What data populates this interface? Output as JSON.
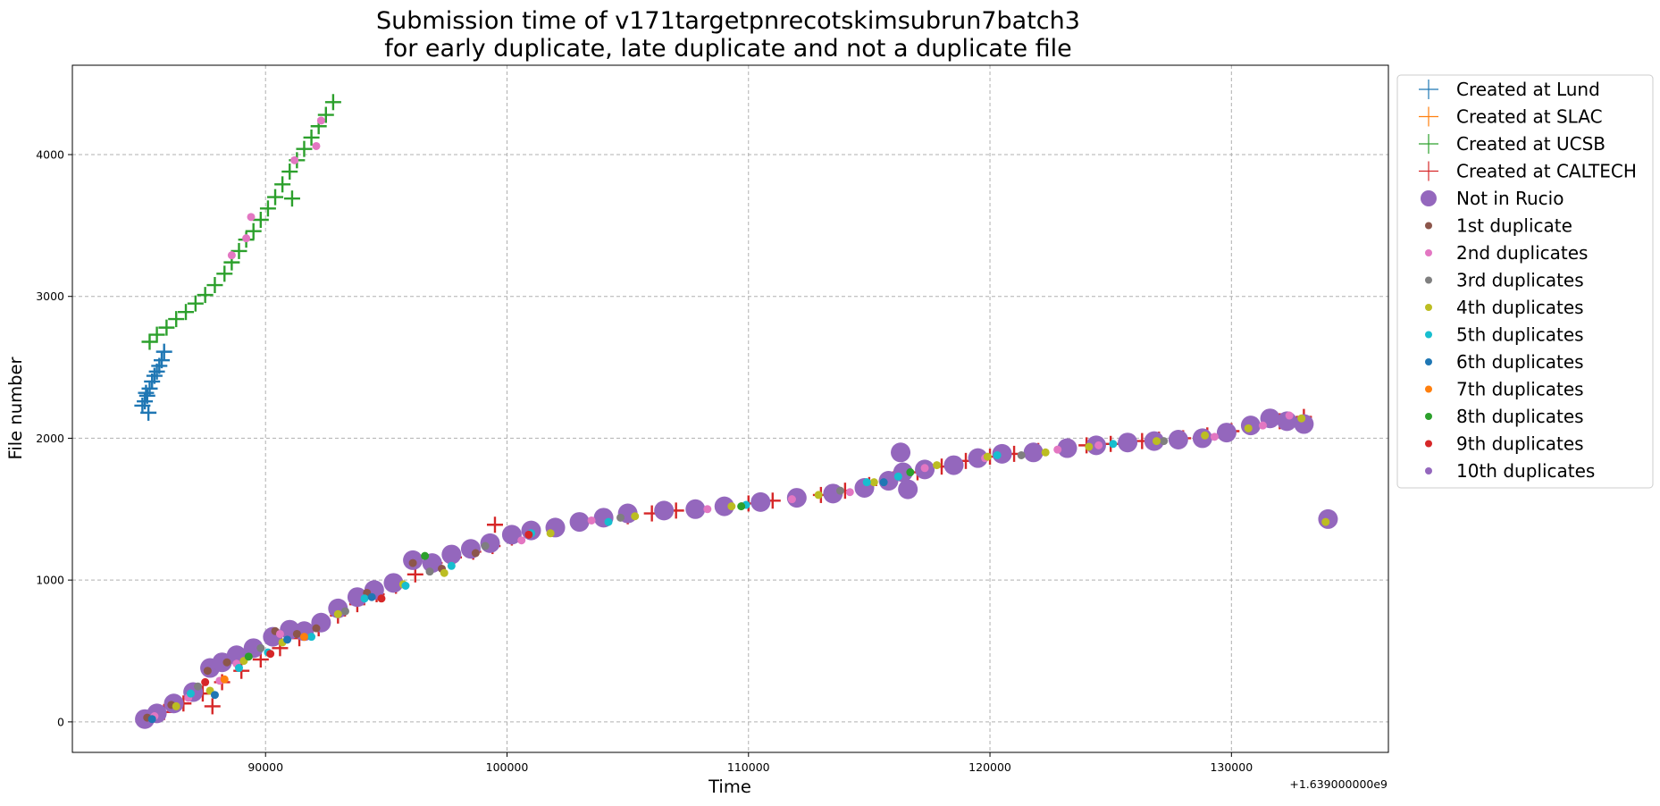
{
  "chart_data": {
    "type": "scatter",
    "title_lines": [
      "Submission time of v171targetpnrecotskimsubrun7batch3",
      " for early duplicate, late duplicate and not a duplicate file"
    ],
    "xlabel": "Time",
    "ylabel": "File number",
    "x_offset_label": "+1.639000000e9",
    "x_offset": 1639000000,
    "xlim": [
      82000,
      136500
    ],
    "ylim": [
      -215,
      4630
    ],
    "xticks": [
      90000,
      100000,
      110000,
      120000,
      130000
    ],
    "xtick_labels": [
      "90000",
      "100000",
      "110000",
      "120000",
      "130000"
    ],
    "yticks": [
      0,
      1000,
      2000,
      3000,
      4000
    ],
    "ytick_labels": [
      "0",
      "1000",
      "2000",
      "3000",
      "4000"
    ],
    "grid": true,
    "legend_position": "outside upper right",
    "series": [
      {
        "name": "Created at Lund",
        "marker": "plus",
        "color": "#1f77b4",
        "x": [
          84900,
          85000,
          85100,
          85200,
          85300,
          85400,
          85500,
          85600,
          85700,
          85800,
          85150,
          85050
        ],
        "y": [
          2230,
          2260,
          2300,
          2350,
          2400,
          2440,
          2470,
          2510,
          2550,
          2610,
          2180,
          2320
        ]
      },
      {
        "name": "Created at SLAC",
        "marker": "plus",
        "color": "#ff7f0e",
        "x": [],
        "y": []
      },
      {
        "name": "Created at UCSB",
        "marker": "plus",
        "color": "#2ca02c",
        "x": [
          85200,
          85500,
          85900,
          86300,
          86700,
          87100,
          87500,
          87900,
          88300,
          88600,
          88900,
          89200,
          89500,
          89800,
          90100,
          90400,
          90700,
          91000,
          91300,
          91600,
          91900,
          92200,
          92500,
          92800,
          91100
        ],
        "y": [
          2680,
          2730,
          2780,
          2840,
          2890,
          2950,
          3010,
          3080,
          3160,
          3240,
          3320,
          3400,
          3460,
          3540,
          3620,
          3700,
          3790,
          3880,
          3960,
          4040,
          4120,
          4200,
          4280,
          4370,
          3690
        ]
      },
      {
        "name": "Created at CALTECH",
        "marker": "plus",
        "color": "#d62728",
        "x": [
          85000,
          85800,
          86600,
          87400,
          88200,
          89000,
          89800,
          90600,
          91400,
          92200,
          93000,
          93800,
          94600,
          95400,
          96200,
          97000,
          97800,
          98600,
          99400,
          100200,
          101000,
          102000,
          103000,
          104000,
          105000,
          106000,
          107000,
          108000,
          109000,
          110000,
          111000,
          112000,
          113000,
          114000,
          115000,
          116000,
          117000,
          118000,
          119000,
          120000,
          121000,
          122000,
          123000,
          124000,
          125000,
          126300,
          127000,
          128000,
          129000,
          130000,
          131000,
          132000,
          133000,
          134000,
          99500,
          87800
        ],
        "y": [
          10,
          70,
          130,
          200,
          280,
          360,
          440,
          520,
          590,
          660,
          750,
          830,
          900,
          960,
          1040,
          1120,
          1160,
          1200,
          1240,
          1300,
          1340,
          1370,
          1400,
          1430,
          1450,
          1470,
          1490,
          1500,
          1520,
          1540,
          1560,
          1580,
          1600,
          1630,
          1670,
          1710,
          1760,
          1800,
          1840,
          1870,
          1890,
          1910,
          1930,
          1950,
          1960,
          1980,
          1990,
          2000,
          2020,
          2050,
          2090,
          2120,
          2150,
          1420,
          1390,
          110
        ]
      },
      {
        "name": "Not in Rucio",
        "marker": "big-circle",
        "color": "#9467bd",
        "x": [
          85000,
          85500,
          86200,
          87000,
          87700,
          88200,
          88800,
          89500,
          90300,
          91000,
          91600,
          92300,
          93000,
          93800,
          94500,
          95300,
          96100,
          96900,
          97700,
          98500,
          99300,
          100200,
          101000,
          102000,
          103000,
          104000,
          105000,
          106500,
          107800,
          109000,
          110500,
          112000,
          113500,
          114800,
          115800,
          116400,
          116600,
          117300,
          118500,
          119500,
          120500,
          121800,
          123200,
          124400,
          125700,
          126800,
          127800,
          128800,
          129800,
          130800,
          131600,
          132300,
          133000,
          134000,
          116300
        ],
        "y": [
          20,
          60,
          130,
          210,
          380,
          420,
          470,
          520,
          600,
          650,
          640,
          700,
          800,
          880,
          930,
          980,
          1140,
          1120,
          1180,
          1220,
          1260,
          1320,
          1350,
          1370,
          1410,
          1440,
          1470,
          1490,
          1500,
          1520,
          1550,
          1580,
          1610,
          1650,
          1700,
          1760,
          1640,
          1780,
          1810,
          1860,
          1890,
          1900,
          1930,
          1950,
          1970,
          1980,
          1990,
          2000,
          2040,
          2090,
          2140,
          2120,
          2100,
          1430,
          1900
        ]
      },
      {
        "name": "1st duplicate",
        "marker": "dot",
        "color": "#8c564b",
        "x": [
          85100,
          86100,
          87600,
          88400,
          90400,
          91300,
          92100,
          94200,
          96100,
          97300,
          98700
        ],
        "y": [
          30,
          120,
          360,
          420,
          640,
          620,
          660,
          910,
          1120,
          1080,
          1190
        ]
      },
      {
        "name": "2nd duplicates",
        "marker": "dot",
        "color": "#e377c2",
        "x": [
          85400,
          86800,
          88100,
          88800,
          89200,
          90600,
          91200,
          92100,
          92300,
          100600,
          103500,
          108300,
          111800,
          114200,
          117300,
          119800,
          122800,
          124500,
          129300,
          131300,
          132400,
          88600,
          89400
        ],
        "y": [
          40,
          170,
          290,
          410,
          3410,
          620,
          3960,
          4060,
          4240,
          1280,
          1420,
          1500,
          1570,
          1620,
          1790,
          1860,
          1920,
          1950,
          2010,
          2090,
          2160,
          3290,
          3560
        ]
      },
      {
        "name": "3rd duplicates",
        "marker": "dot",
        "color": "#7f7f7f",
        "x": [
          87200,
          89800,
          93300,
          96800,
          99100,
          104700,
          113800,
          121300,
          127200
        ],
        "y": [
          250,
          520,
          780,
          1060,
          1240,
          1440,
          1630,
          1880,
          1980
        ]
      },
      {
        "name": "4th duplicates",
        "marker": "dot",
        "color": "#bcbd22",
        "x": [
          86300,
          87700,
          89100,
          90700,
          93000,
          95700,
          97400,
          101800,
          105300,
          109300,
          112900,
          115200,
          117800,
          119900,
          122300,
          124100,
          126900,
          128900,
          130700,
          132900,
          133900
        ],
        "y": [
          110,
          220,
          430,
          560,
          760,
          970,
          1050,
          1330,
          1450,
          1520,
          1600,
          1690,
          1810,
          1870,
          1900,
          1940,
          1980,
          2020,
          2070,
          2140,
          1410
        ]
      },
      {
        "name": "5th duplicates",
        "marker": "dot",
        "color": "#17becf",
        "x": [
          86900,
          88900,
          90100,
          91900,
          94100,
          95800,
          97700,
          101000,
          104200,
          109900,
          114900,
          116200,
          120300,
          125100
        ],
        "y": [
          200,
          380,
          490,
          600,
          870,
          960,
          1100,
          1330,
          1410,
          1530,
          1690,
          1730,
          1880,
          1960
        ]
      },
      {
        "name": "6th duplicates",
        "marker": "dot",
        "color": "#1f77b4",
        "x": [
          85300,
          87900,
          90900,
          94400,
          115600
        ],
        "y": [
          20,
          190,
          580,
          880,
          1690
        ]
      },
      {
        "name": "7th duplicates",
        "marker": "dot",
        "color": "#ff7f0e",
        "x": [
          88300,
          91600
        ],
        "y": [
          300,
          600
        ]
      },
      {
        "name": "8th duplicates",
        "marker": "dot",
        "color": "#2ca02c",
        "x": [
          89300,
          96600,
          109700,
          116700
        ],
        "y": [
          460,
          1170,
          1520,
          1760
        ]
      },
      {
        "name": "9th duplicates",
        "marker": "dot",
        "color": "#d62728",
        "x": [
          87500,
          90200,
          94800,
          100900
        ],
        "y": [
          280,
          480,
          870,
          1320
        ]
      },
      {
        "name": "10th duplicates",
        "marker": "dot",
        "color": "#9467bd",
        "x": [],
        "y": []
      }
    ]
  }
}
